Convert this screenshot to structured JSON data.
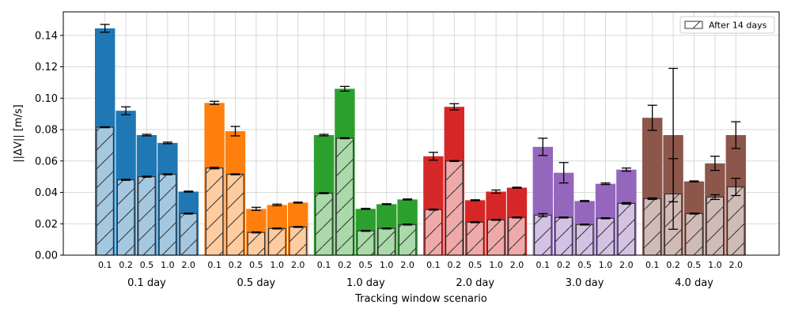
{
  "chart_data": {
    "type": "bar",
    "xlabel": "Tracking window scenario",
    "ylabel": "||ΔV|| [m/s]",
    "ylim": [
      0,
      0.155
    ],
    "yticks": [
      "0.00",
      "0.02",
      "0.04",
      "0.06",
      "0.08",
      "0.10",
      "0.12",
      "0.14"
    ],
    "grid": true,
    "legend": {
      "placement": "top-right",
      "label": "After 14 days"
    },
    "sub_categories": [
      "0.1",
      "0.2",
      "0.5",
      "1.0",
      "2.0"
    ],
    "groups": [
      {
        "label": "0.1 day",
        "color": "#1f77b4",
        "light_color": "#a5c8e1",
        "values": [
          0.1445,
          0.092,
          0.0765,
          0.0715,
          0.0405
        ],
        "errors": [
          0.0025,
          0.0025,
          0.0005,
          0.0005,
          0.0003
        ],
        "after_values": [
          0.0815,
          0.048,
          0.05,
          0.0515,
          0.0265
        ],
        "after_errors": [
          0.0003,
          0.0003,
          0.0003,
          0.0003,
          0.0003
        ]
      },
      {
        "label": "0.5 day",
        "color": "#ff7f0e",
        "light_color": "#ffcc9f",
        "values": [
          0.097,
          0.079,
          0.0295,
          0.032,
          0.0335
        ],
        "errors": [
          0.001,
          0.003,
          0.001,
          0.0005,
          0.0003
        ],
        "after_values": [
          0.0555,
          0.0515,
          0.0145,
          0.017,
          0.018
        ],
        "after_errors": [
          0.0005,
          0.0003,
          0.0003,
          0.0003,
          0.0003
        ]
      },
      {
        "label": "1.0 day",
        "color": "#2ca02c",
        "light_color": "#aad9aa",
        "values": [
          0.0765,
          0.106,
          0.0295,
          0.0325,
          0.0355
        ],
        "errors": [
          0.0005,
          0.0015,
          0.0003,
          0.0003,
          0.0003
        ],
        "after_values": [
          0.0395,
          0.0745,
          0.0155,
          0.017,
          0.0195
        ],
        "after_errors": [
          0.0003,
          0.0003,
          0.0003,
          0.0003,
          0.0003
        ]
      },
      {
        "label": "2.0 day",
        "color": "#d62728",
        "light_color": "#efa9a9",
        "values": [
          0.063,
          0.0945,
          0.035,
          0.0405,
          0.043
        ],
        "errors": [
          0.0025,
          0.002,
          0.0003,
          0.001,
          0.0003
        ],
        "after_values": [
          0.029,
          0.06,
          0.021,
          0.0225,
          0.024
        ],
        "after_errors": [
          0.0003,
          0.0003,
          0.0003,
          0.0003,
          0.0003
        ]
      },
      {
        "label": "3.0 day",
        "color": "#9467bd",
        "light_color": "#d4c2e5",
        "values": [
          0.069,
          0.0525,
          0.0345,
          0.0455,
          0.0545
        ],
        "errors": [
          0.0055,
          0.0065,
          0.0003,
          0.0005,
          0.001
        ],
        "after_values": [
          0.0255,
          0.024,
          0.0195,
          0.0235,
          0.033
        ],
        "after_errors": [
          0.001,
          0.0003,
          0.0003,
          0.0003,
          0.0005
        ]
      },
      {
        "label": "4.0 day",
        "color": "#8c564b",
        "light_color": "#d1bbb7",
        "values": [
          0.0875,
          0.0765,
          0.047,
          0.0585,
          0.0765
        ],
        "errors": [
          0.008,
          0.0425,
          0.0003,
          0.0045,
          0.0085
        ],
        "after_values": [
          0.036,
          0.039,
          0.0265,
          0.037,
          0.0435
        ],
        "after_errors": [
          0.0005,
          0.0225,
          0.0003,
          0.0015,
          0.0055
        ]
      }
    ]
  }
}
